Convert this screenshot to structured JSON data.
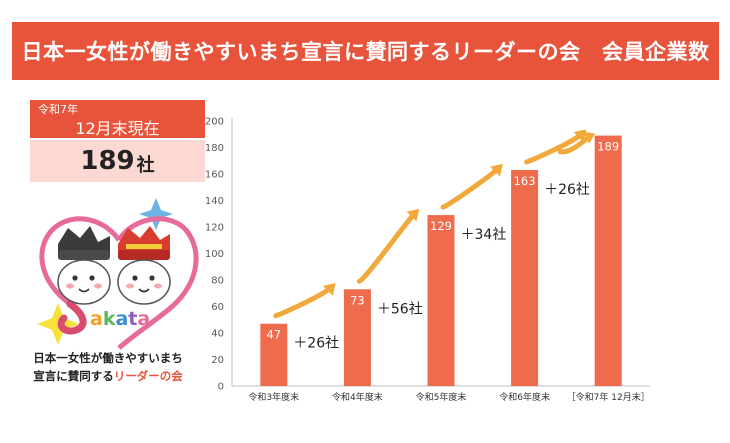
{
  "title": "日本一女性が働きやすいまち宣言に賛同するリーダーの会　会員企業数",
  "stat": {
    "era": "令和7年",
    "date": "12月末現在",
    "count": "189",
    "unit": "社"
  },
  "logo": {
    "wordmark": "Sakata",
    "line1": "日本一女性が働きやすいまち",
    "line2_a": "宣言に賛同する",
    "line2_b": "リーダーの会"
  },
  "colors": {
    "accent": "#e8533b",
    "bar": "#ee6b4d",
    "arrow": "#f2a93b",
    "pale": "#fbd9d2"
  },
  "chart_data": {
    "type": "bar",
    "categories": [
      "令和3年度末",
      "令和4年度末",
      "令和5年度末",
      "令和6年度末",
      "［令和7年 12月末］"
    ],
    "values": [
      47,
      73,
      129,
      163,
      189
    ],
    "increments": [
      "＋26社",
      "＋56社",
      "＋34社",
      "＋26社"
    ],
    "ylim": [
      0,
      200
    ],
    "yticks": [
      0,
      20,
      40,
      60,
      80,
      100,
      120,
      140,
      160,
      180,
      200
    ],
    "grid": false
  }
}
